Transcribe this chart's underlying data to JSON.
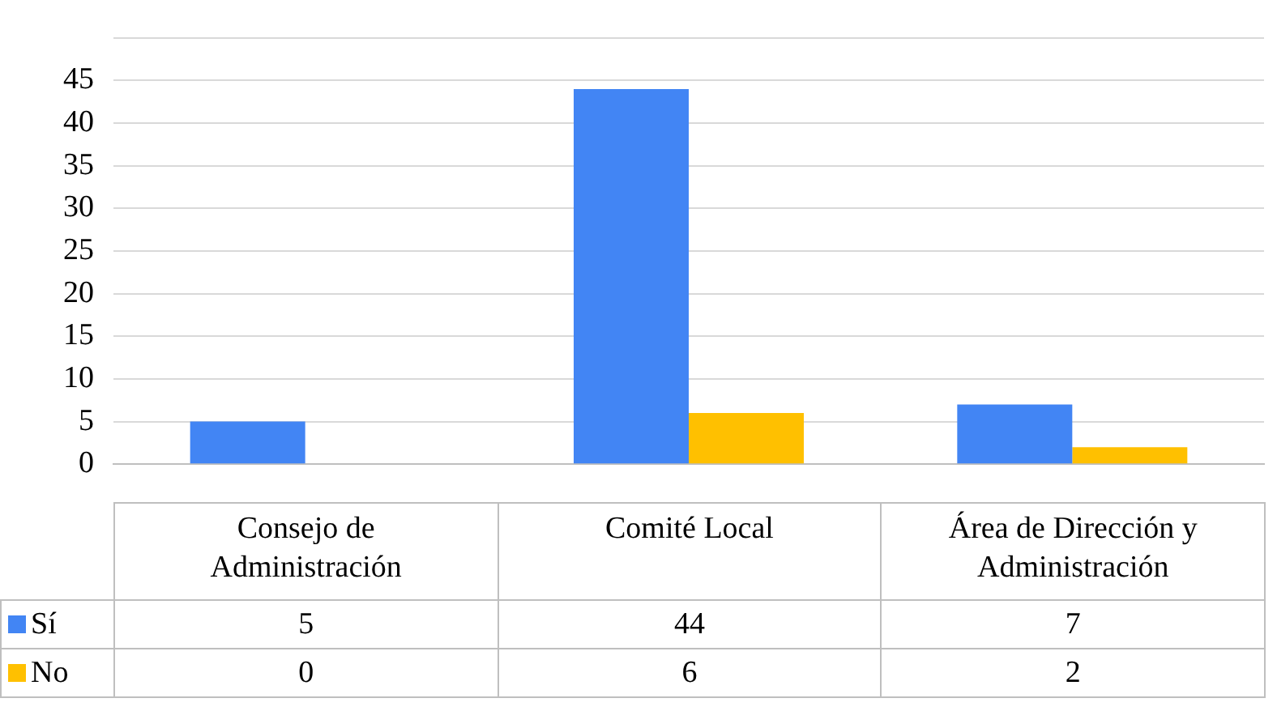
{
  "chart_data": {
    "type": "bar",
    "categories": [
      "Consejo de Administración",
      "Comité Local",
      "Área de Dirección y Administración"
    ],
    "series": [
      {
        "name": "Sí",
        "color": "#4285f4",
        "values": [
          5,
          44,
          7
        ]
      },
      {
        "name": "No",
        "color": "#ffc000",
        "values": [
          0,
          6,
          2
        ]
      }
    ],
    "ylim": [
      0,
      50
    ],
    "yticks": [
      0,
      5,
      10,
      15,
      20,
      25,
      30,
      35,
      40,
      45,
      {
        "value": 50,
        "label": null
      }
    ],
    "grid": "y",
    "legend": "bottom left",
    "data_labels": true
  }
}
